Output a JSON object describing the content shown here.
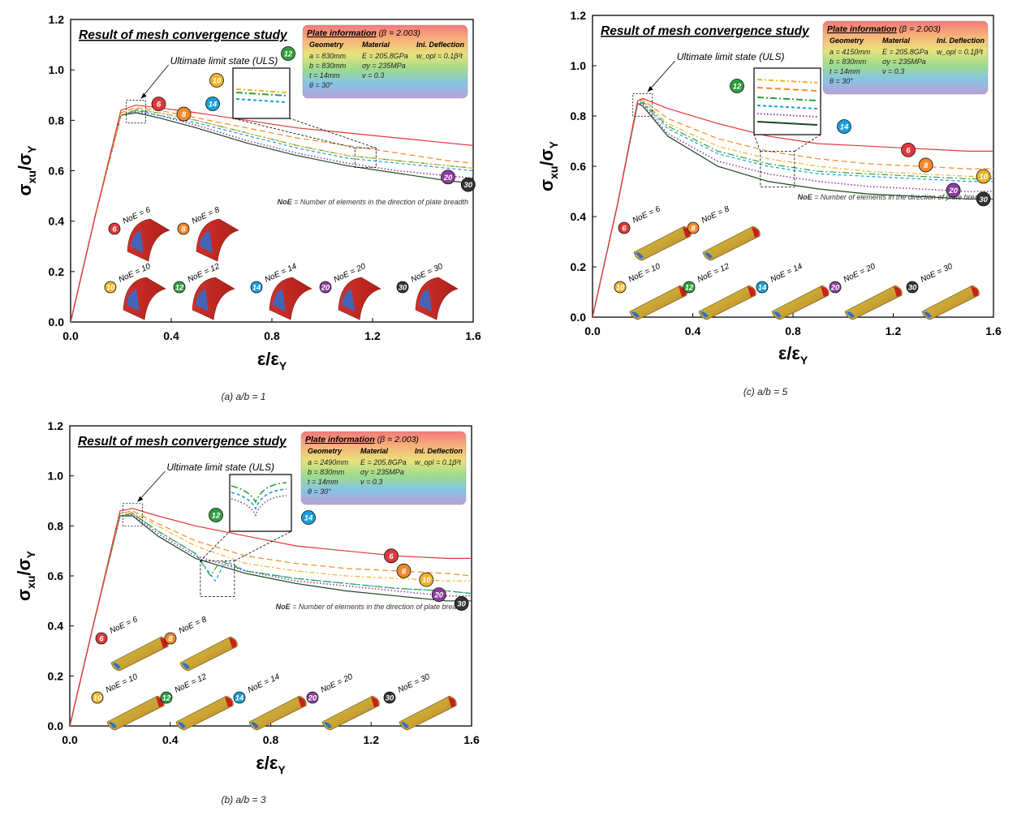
{
  "colors": {
    "n6": "#e0383b",
    "n8": "#f08a2c",
    "n10": "#f0b429",
    "n12": "#2e9e3e",
    "n14": "#1a9fd8",
    "n20": "#8e3c9e",
    "n30": "#333333",
    "line30": "#1e4620"
  },
  "chart_data": [
    {
      "id": "a",
      "type": "line",
      "caption": "(a) a/b = 1",
      "title": "Result of mesh convergence study",
      "xlabel_main": "ε/ε",
      "xlabel_sub": "Y",
      "ylabel_main": "σ",
      "ylabel_sub1": "xu",
      "ylabel_mid": "/σ",
      "ylabel_sub2": "Y",
      "xlim": [
        0,
        1.6
      ],
      "ylim": [
        0,
        1.2
      ],
      "xticks": [
        "0.0",
        "0.4",
        "0.8",
        "1.2",
        "1.6"
      ],
      "yticks": [
        "0.0",
        "0.2",
        "0.4",
        "0.6",
        "0.8",
        "1.0",
        "1.2"
      ],
      "uls_label": "Ultimate limit state (ULS)",
      "noe_note_bold": "NoE",
      "noe_note": " = Number of elements in the direction of plate breadth",
      "info": {
        "title": "Plate information",
        "beta": " (β = 2.003)",
        "col_headers": [
          "Geometry",
          "Material",
          "Ini. Deflection"
        ],
        "rows": [
          [
            "a = 830mm",
            "E = 205.8GPa",
            "w_opl = 0.1β²t"
          ],
          [
            "b = 830mm",
            "σy = 235MPa",
            ""
          ],
          [
            "t = 14mm",
            "ν = 0.3",
            ""
          ],
          [
            "θ = 30°",
            "",
            ""
          ]
        ]
      },
      "series": [
        {
          "name": "6",
          "x": [
            0,
            0.1,
            0.2,
            0.26,
            0.35,
            0.5,
            0.7,
            0.9,
            1.1,
            1.3,
            1.5,
            1.6
          ],
          "y": [
            0,
            0.43,
            0.84,
            0.86,
            0.85,
            0.83,
            0.8,
            0.77,
            0.75,
            0.73,
            0.71,
            0.7
          ]
        },
        {
          "name": "8",
          "x": [
            0,
            0.1,
            0.2,
            0.26,
            0.35,
            0.5,
            0.7,
            0.9,
            1.1,
            1.3,
            1.5,
            1.6
          ],
          "y": [
            0,
            0.43,
            0.83,
            0.85,
            0.84,
            0.81,
            0.77,
            0.73,
            0.7,
            0.67,
            0.64,
            0.63
          ]
        },
        {
          "name": "10",
          "x": [
            0,
            0.1,
            0.2,
            0.26,
            0.35,
            0.5,
            0.7,
            0.9,
            1.1,
            1.3,
            1.5,
            1.6
          ],
          "y": [
            0,
            0.43,
            0.82,
            0.845,
            0.83,
            0.8,
            0.75,
            0.7,
            0.66,
            0.64,
            0.62,
            0.61
          ]
        },
        {
          "name": "12",
          "x": [
            0,
            0.1,
            0.2,
            0.26,
            0.35,
            0.5,
            0.7,
            0.9,
            1.1,
            1.3,
            1.5,
            1.6
          ],
          "y": [
            0,
            0.43,
            0.82,
            0.84,
            0.83,
            0.8,
            0.75,
            0.7,
            0.66,
            0.64,
            0.62,
            0.61
          ]
        },
        {
          "name": "14",
          "x": [
            0,
            0.1,
            0.2,
            0.26,
            0.35,
            0.5,
            0.7,
            0.9,
            1.1,
            1.3,
            1.5,
            1.6
          ],
          "y": [
            0,
            0.43,
            0.82,
            0.84,
            0.82,
            0.79,
            0.74,
            0.69,
            0.65,
            0.63,
            0.61,
            0.6
          ]
        },
        {
          "name": "20",
          "x": [
            0,
            0.1,
            0.2,
            0.26,
            0.35,
            0.5,
            0.7,
            0.9,
            1.1,
            1.3,
            1.5,
            1.6
          ],
          "y": [
            0,
            0.43,
            0.82,
            0.835,
            0.82,
            0.78,
            0.72,
            0.67,
            0.63,
            0.6,
            0.58,
            0.57
          ]
        },
        {
          "name": "30",
          "x": [
            0,
            0.1,
            0.2,
            0.26,
            0.35,
            0.5,
            0.7,
            0.9,
            1.1,
            1.3,
            1.5,
            1.6
          ],
          "y": [
            0,
            0.43,
            0.82,
            0.83,
            0.81,
            0.77,
            0.71,
            0.66,
            0.62,
            0.59,
            0.56,
            0.55
          ]
        }
      ],
      "meshes": [
        {
          "label": "NoE = 6",
          "tag": "6"
        },
        {
          "label": "NoE = 8",
          "tag": "8"
        },
        {
          "label": "NoE = 10",
          "tag": "10"
        },
        {
          "label": "NoE = 12",
          "tag": "12"
        },
        {
          "label": "NoE = 14",
          "tag": "14"
        },
        {
          "label": "NoE = 20",
          "tag": "20"
        },
        {
          "label": "NoE = 30",
          "tag": "30"
        }
      ]
    },
    {
      "id": "b",
      "type": "line",
      "caption": "(b) a/b = 3",
      "title": "Result of mesh convergence study",
      "xlabel_main": "ε/ε",
      "xlabel_sub": "Y",
      "ylabel_main": "σ",
      "ylabel_sub1": "xu",
      "ylabel_mid": "/σ",
      "ylabel_sub2": "Y",
      "xlim": [
        0,
        1.6
      ],
      "ylim": [
        0,
        1.2
      ],
      "xticks": [
        "0.0",
        "0.4",
        "0.8",
        "1.2",
        "1.6"
      ],
      "yticks": [
        "0.0",
        "0.2",
        "0.4",
        "0.6",
        "0.8",
        "1.0",
        "1.2"
      ],
      "uls_label": "Ultimate limit state (ULS)",
      "noe_note_bold": "NoE",
      "noe_note": " = Number of elements in the direction of plate breadth",
      "info": {
        "title": "Plate information",
        "beta": " (β = 2.003)",
        "col_headers": [
          "Geometry",
          "Material",
          "Ini. Deflection"
        ],
        "rows": [
          [
            "a = 2490mm",
            "E = 205.8GPa",
            "w_opl = 0.1β²t"
          ],
          [
            "b = 830mm",
            "σy = 235MPa",
            ""
          ],
          [
            "t = 14mm",
            "ν = 0.3",
            ""
          ],
          [
            "θ = 30°",
            "",
            ""
          ]
        ]
      },
      "series": [
        {
          "name": "6",
          "x": [
            0,
            0.1,
            0.2,
            0.25,
            0.35,
            0.5,
            0.7,
            0.9,
            1.1,
            1.3,
            1.5,
            1.6
          ],
          "y": [
            0,
            0.43,
            0.86,
            0.87,
            0.84,
            0.8,
            0.76,
            0.72,
            0.7,
            0.68,
            0.67,
            0.67
          ]
        },
        {
          "name": "8",
          "x": [
            0,
            0.1,
            0.2,
            0.25,
            0.35,
            0.5,
            0.7,
            0.9,
            1.1,
            1.3,
            1.5,
            1.6
          ],
          "y": [
            0,
            0.43,
            0.85,
            0.86,
            0.81,
            0.74,
            0.68,
            0.65,
            0.63,
            0.62,
            0.61,
            0.6
          ]
        },
        {
          "name": "10",
          "x": [
            0,
            0.1,
            0.2,
            0.25,
            0.35,
            0.5,
            0.7,
            0.9,
            1.1,
            1.3,
            1.5,
            1.6
          ],
          "y": [
            0,
            0.43,
            0.85,
            0.855,
            0.8,
            0.72,
            0.65,
            0.62,
            0.6,
            0.59,
            0.58,
            0.58
          ]
        },
        {
          "name": "12",
          "x": [
            0,
            0.1,
            0.2,
            0.25,
            0.35,
            0.5,
            0.56,
            0.6,
            0.65,
            0.7,
            0.9,
            1.1,
            1.3,
            1.5,
            1.6
          ],
          "y": [
            0,
            0.43,
            0.84,
            0.85,
            0.78,
            0.69,
            0.6,
            0.66,
            0.64,
            0.62,
            0.59,
            0.57,
            0.55,
            0.54,
            0.53
          ]
        },
        {
          "name": "14",
          "x": [
            0,
            0.1,
            0.2,
            0.25,
            0.35,
            0.5,
            0.58,
            0.62,
            0.66,
            0.7,
            0.9,
            1.1,
            1.3,
            1.5,
            1.6
          ],
          "y": [
            0,
            0.43,
            0.84,
            0.85,
            0.78,
            0.69,
            0.58,
            0.66,
            0.64,
            0.62,
            0.59,
            0.57,
            0.55,
            0.54,
            0.53
          ]
        },
        {
          "name": "20",
          "x": [
            0,
            0.1,
            0.2,
            0.25,
            0.35,
            0.5,
            0.7,
            0.9,
            1.1,
            1.3,
            1.5,
            1.6
          ],
          "y": [
            0,
            0.43,
            0.84,
            0.845,
            0.77,
            0.68,
            0.62,
            0.58,
            0.56,
            0.54,
            0.52,
            0.52
          ]
        },
        {
          "name": "30",
          "x": [
            0,
            0.1,
            0.2,
            0.25,
            0.35,
            0.5,
            0.7,
            0.9,
            1.1,
            1.3,
            1.5,
            1.6
          ],
          "y": [
            0,
            0.43,
            0.84,
            0.84,
            0.76,
            0.67,
            0.61,
            0.57,
            0.54,
            0.52,
            0.5,
            0.5
          ]
        }
      ],
      "meshes": [
        {
          "label": "NoE = 6",
          "tag": "6"
        },
        {
          "label": "NoE = 8",
          "tag": "8"
        },
        {
          "label": "NoE = 10",
          "tag": "10"
        },
        {
          "label": "NoE = 12",
          "tag": "12"
        },
        {
          "label": "NoE = 14",
          "tag": "14"
        },
        {
          "label": "NoE = 20",
          "tag": "20"
        },
        {
          "label": "NoE = 30",
          "tag": "30"
        }
      ]
    },
    {
      "id": "c",
      "type": "line",
      "caption": "(c) a/b = 5",
      "title": "Result of mesh convergence study",
      "xlabel_main": "ε/ε",
      "xlabel_sub": "Y",
      "ylabel_main": "σ",
      "ylabel_sub1": "xu",
      "ylabel_mid": "/σ",
      "ylabel_sub2": "Y",
      "xlim": [
        0,
        1.6
      ],
      "ylim": [
        0,
        1.2
      ],
      "xticks": [
        "0.0",
        "0.4",
        "0.8",
        "1.2",
        "1.6"
      ],
      "yticks": [
        "0.0",
        "0.2",
        "0.4",
        "0.6",
        "0.8",
        "1.0",
        "1.2"
      ],
      "uls_label": "Ultimate limit state (ULS)",
      "noe_note_bold": "NoE",
      "noe_note": " = Number of elements in the direction of plate breadth",
      "info": {
        "title": "Plate information",
        "beta": " (β = 2.003)",
        "col_headers": [
          "Geometry",
          "Material",
          "Ini. Deflection"
        ],
        "rows": [
          [
            "a = 4150mm",
            "E = 205.8GPa",
            "w_opl = 0.1β²t"
          ],
          [
            "b = 830mm",
            "σy = 235MPa",
            ""
          ],
          [
            "t = 14mm",
            "ν = 0.3",
            ""
          ],
          [
            "θ = 30°",
            "",
            ""
          ]
        ]
      },
      "series": [
        {
          "name": "6",
          "x": [
            0,
            0.1,
            0.18,
            0.2,
            0.3,
            0.5,
            0.7,
            0.9,
            1.1,
            1.3,
            1.5,
            1.6
          ],
          "y": [
            0,
            0.45,
            0.86,
            0.87,
            0.83,
            0.77,
            0.72,
            0.69,
            0.68,
            0.67,
            0.66,
            0.66
          ]
        },
        {
          "name": "8",
          "x": [
            0,
            0.1,
            0.18,
            0.2,
            0.3,
            0.5,
            0.7,
            0.9,
            1.1,
            1.3,
            1.5,
            1.6
          ],
          "y": [
            0,
            0.45,
            0.86,
            0.865,
            0.79,
            0.71,
            0.66,
            0.63,
            0.61,
            0.6,
            0.59,
            0.59
          ]
        },
        {
          "name": "10",
          "x": [
            0,
            0.1,
            0.18,
            0.2,
            0.3,
            0.5,
            0.7,
            0.9,
            1.1,
            1.3,
            1.5,
            1.6
          ],
          "y": [
            0,
            0.45,
            0.86,
            0.86,
            0.77,
            0.68,
            0.63,
            0.6,
            0.58,
            0.57,
            0.56,
            0.56
          ]
        },
        {
          "name": "12",
          "x": [
            0,
            0.1,
            0.18,
            0.2,
            0.3,
            0.5,
            0.7,
            0.9,
            1.1,
            1.3,
            1.5,
            1.6
          ],
          "y": [
            0,
            0.45,
            0.85,
            0.855,
            0.76,
            0.66,
            0.61,
            0.58,
            0.57,
            0.56,
            0.55,
            0.55
          ]
        },
        {
          "name": "14",
          "x": [
            0,
            0.1,
            0.18,
            0.2,
            0.3,
            0.5,
            0.7,
            0.9,
            1.1,
            1.3,
            1.5,
            1.6
          ],
          "y": [
            0,
            0.45,
            0.85,
            0.85,
            0.75,
            0.65,
            0.6,
            0.57,
            0.56,
            0.55,
            0.54,
            0.54
          ]
        },
        {
          "name": "20",
          "x": [
            0,
            0.1,
            0.18,
            0.2,
            0.3,
            0.5,
            0.7,
            0.9,
            1.1,
            1.3,
            1.5,
            1.6
          ],
          "y": [
            0,
            0.45,
            0.85,
            0.845,
            0.73,
            0.62,
            0.57,
            0.54,
            0.52,
            0.51,
            0.5,
            0.5
          ]
        },
        {
          "name": "30",
          "x": [
            0,
            0.1,
            0.18,
            0.2,
            0.3,
            0.5,
            0.7,
            0.9,
            1.1,
            1.3,
            1.5,
            1.6
          ],
          "y": [
            0,
            0.45,
            0.85,
            0.84,
            0.72,
            0.6,
            0.54,
            0.51,
            0.49,
            0.48,
            0.47,
            0.47
          ]
        }
      ],
      "meshes": [
        {
          "label": "NoE = 6",
          "tag": "6"
        },
        {
          "label": "NoE = 8",
          "tag": "8"
        },
        {
          "label": "NoE = 10",
          "tag": "10"
        },
        {
          "label": "NoE = 12",
          "tag": "12"
        },
        {
          "label": "NoE = 14",
          "tag": "14"
        },
        {
          "label": "NoE = 20",
          "tag": "20"
        },
        {
          "label": "NoE = 30",
          "tag": "30"
        }
      ]
    }
  ]
}
